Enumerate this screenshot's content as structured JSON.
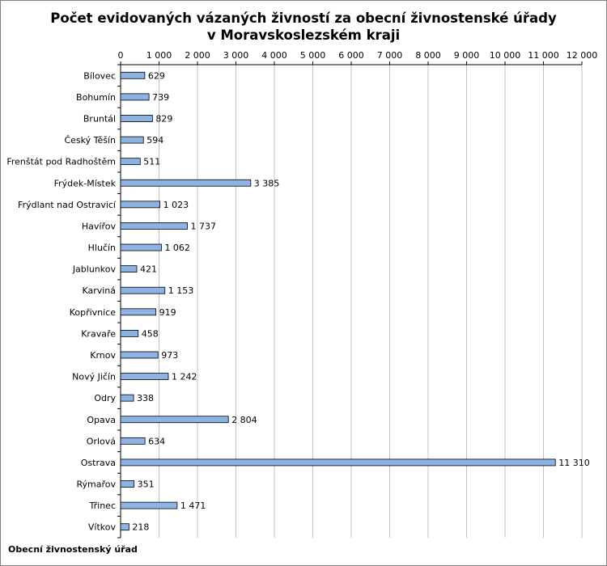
{
  "chart_data": {
    "type": "bar",
    "orientation": "horizontal",
    "title_lines": [
      "Počet evidovaných vázaných živností za obecní živnostenské úřady",
      "v Moravskoslezském kraji"
    ],
    "xlabel": "",
    "ylabel": "",
    "footer_label": "Obecní živnostenský úřad",
    "xlim": [
      0,
      12000
    ],
    "x_ticks": [
      0,
      1000,
      2000,
      3000,
      4000,
      5000,
      6000,
      7000,
      8000,
      9000,
      10000,
      11000,
      12000
    ],
    "x_tick_labels": [
      "0",
      "1 000",
      "2 000",
      "3 000",
      "4 000",
      "5 000",
      "6 000",
      "7 000",
      "8 000",
      "9 000",
      "10 000",
      "11 000",
      "12 000"
    ],
    "x_axis_position": "top",
    "grid": "vertical",
    "legend": "none",
    "bar_color": "#8db3e2",
    "bar_border_color": "#000000",
    "categories": [
      "Bílovec",
      "Bohumín",
      "Bruntál",
      "Český Těšín",
      "Frenštát pod Radhoštěm",
      "Frýdek-Místek",
      "Frýdlant nad Ostravicí",
      "Havířov",
      "Hlučín",
      "Jablunkov",
      "Karviná",
      "Kopřivnice",
      "Kravaře",
      "Krnov",
      "Nový Jičín",
      "Odry",
      "Opava",
      "Orlová",
      "Ostrava",
      "Rýmařov",
      "Třinec",
      "Vítkov"
    ],
    "values": [
      629,
      739,
      829,
      594,
      511,
      3385,
      1023,
      1737,
      1062,
      421,
      1153,
      919,
      458,
      973,
      1242,
      338,
      2804,
      634,
      11310,
      351,
      1471,
      218
    ],
    "value_labels": [
      "629",
      "739",
      "829",
      "594",
      "511",
      "3 385",
      "1 023",
      "1 737",
      "1 062",
      "421",
      "1 153",
      "919",
      "458",
      "973",
      "1 242",
      "338",
      "2 804",
      "634",
      "11 310",
      "351",
      "1 471",
      "218"
    ]
  }
}
